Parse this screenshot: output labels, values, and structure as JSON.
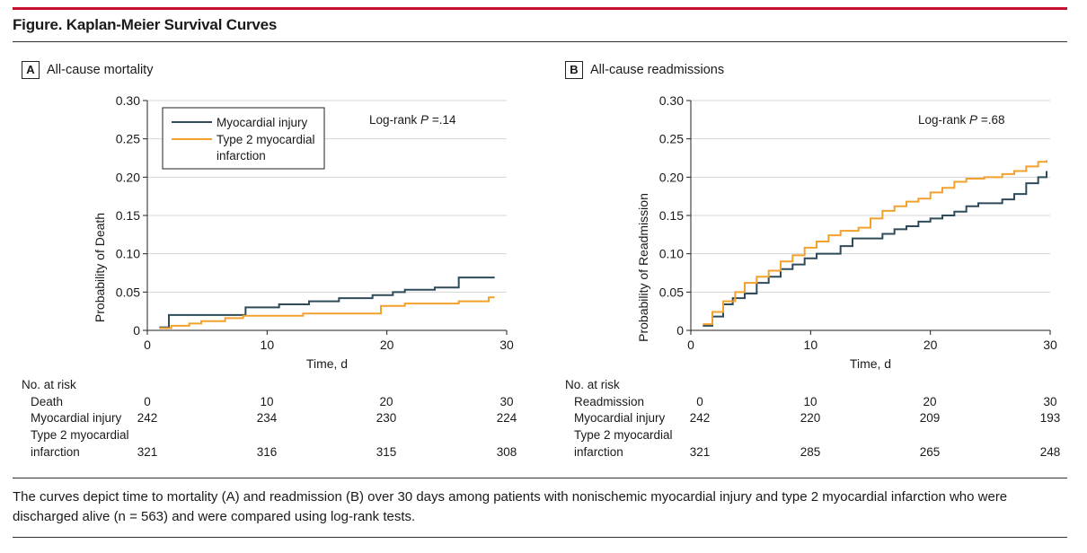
{
  "figure": {
    "title": "Figure. Kaplan-Meier Survival Curves",
    "caption": "The curves depict time to mortality (A) and readmission (B) over 30 days among patients with nonischemic myocardial injury and type 2 myocardial infarction who were discharged alive (n = 563) and were compared using log-rank tests."
  },
  "colors": {
    "myocardial_injury": "#2f4b5a",
    "type2_mi": "#f2a12c",
    "accent_rule": "#c8102e"
  },
  "legend_lines": [
    "Myocardial injury",
    "Type 2 myocardial",
    "infarction"
  ],
  "panels": [
    {
      "letter": "A",
      "title": "All-cause mortality",
      "pvalue_prefix": "Log-rank ",
      "pvalue_p": "P",
      "pvalue_suffix": " =.14",
      "risk_header": "No. at risk",
      "risk_event_label": "Death",
      "risk_times": [
        "0",
        "10",
        "20",
        "30"
      ],
      "risk_row1_label": "Myocardial injury",
      "risk_row1": [
        "242",
        "234",
        "230",
        "224"
      ],
      "risk_row2_label_1": "Type 2 myocardial",
      "risk_row2_label_2": "infarction",
      "risk_row2": [
        "321",
        "316",
        "315",
        "308"
      ]
    },
    {
      "letter": "B",
      "title": "All-cause readmissions",
      "pvalue_prefix": "Log-rank ",
      "pvalue_p": "P",
      "pvalue_suffix": " =.68",
      "risk_header": "No. at risk",
      "risk_event_label": "Readmission",
      "risk_times": [
        "0",
        "10",
        "20",
        "30"
      ],
      "risk_row1_label": "Myocardial injury",
      "risk_row1": [
        "242",
        "220",
        "209",
        "193"
      ],
      "risk_row2_label_1": "Type 2 myocardial",
      "risk_row2_label_2": "infarction",
      "risk_row2": [
        "321",
        "285",
        "265",
        "248"
      ]
    }
  ],
  "chart_data": [
    {
      "type": "line",
      "step": true,
      "title": "All-cause mortality",
      "xlabel": "Time, d",
      "ylabel": "Probability of Death",
      "xlim": [
        0,
        30
      ],
      "ylim": [
        0,
        0.3
      ],
      "xticks": [
        0,
        10,
        20,
        30
      ],
      "yticks": [
        0,
        0.05,
        0.1,
        0.15,
        0.2,
        0.25,
        0.3
      ],
      "ytick_labels": [
        "0",
        "0.05",
        "0.10",
        "0.15",
        "0.20",
        "0.25",
        "0.30"
      ],
      "grid": true,
      "legend_position": "top-left",
      "series": [
        {
          "name": "Myocardial injury",
          "x": [
            1,
            1.8,
            8.2,
            11,
            13.5,
            16,
            18.8,
            20.5,
            21.5,
            24,
            26,
            29
          ],
          "y": [
            0.004,
            0.02,
            0.03,
            0.034,
            0.038,
            0.042,
            0.046,
            0.05,
            0.053,
            0.056,
            0.069,
            0.069
          ]
        },
        {
          "name": "Type 2 myocardial infarction",
          "x": [
            1,
            2,
            3.5,
            4.5,
            6.5,
            8,
            13,
            19.5,
            21.5,
            26,
            28.5,
            29
          ],
          "y": [
            0.003,
            0.006,
            0.009,
            0.012,
            0.016,
            0.019,
            0.022,
            0.032,
            0.035,
            0.038,
            0.043,
            0.043
          ]
        }
      ]
    },
    {
      "type": "line",
      "step": true,
      "title": "All-cause readmissions",
      "xlabel": "Time, d",
      "ylabel": "Probability of Readmission",
      "xlim": [
        0,
        30
      ],
      "ylim": [
        0,
        0.3
      ],
      "xticks": [
        0,
        10,
        20,
        30
      ],
      "yticks": [
        0,
        0.05,
        0.1,
        0.15,
        0.2,
        0.25,
        0.3
      ],
      "ytick_labels": [
        "0",
        "0.05",
        "0.10",
        "0.15",
        "0.20",
        "0.25",
        "0.30"
      ],
      "grid": true,
      "series": [
        {
          "name": "Myocardial injury",
          "x": [
            1,
            1.8,
            2.7,
            3.5,
            4.5,
            5.5,
            6.5,
            7.5,
            8.5,
            9.5,
            10.5,
            12.5,
            13.5,
            16,
            17,
            18,
            19,
            20,
            21,
            22,
            23,
            24,
            26,
            27,
            28,
            29,
            29.7
          ],
          "y": [
            0.006,
            0.018,
            0.034,
            0.042,
            0.048,
            0.062,
            0.07,
            0.08,
            0.086,
            0.094,
            0.1,
            0.11,
            0.12,
            0.126,
            0.132,
            0.136,
            0.142,
            0.146,
            0.15,
            0.155,
            0.162,
            0.166,
            0.171,
            0.178,
            0.192,
            0.2,
            0.208
          ]
        },
        {
          "name": "Type 2 myocardial infarction",
          "x": [
            1,
            1.8,
            2.7,
            3.7,
            4.5,
            5.5,
            6.5,
            7.5,
            8.5,
            9.5,
            10.5,
            11.5,
            12.5,
            14,
            15,
            16,
            17,
            18,
            19,
            20,
            21,
            22,
            23,
            24.5,
            26,
            27,
            28,
            29,
            29.7
          ],
          "y": [
            0.008,
            0.024,
            0.038,
            0.05,
            0.062,
            0.07,
            0.078,
            0.09,
            0.098,
            0.108,
            0.116,
            0.124,
            0.13,
            0.134,
            0.146,
            0.156,
            0.162,
            0.168,
            0.172,
            0.18,
            0.186,
            0.194,
            0.198,
            0.2,
            0.204,
            0.208,
            0.214,
            0.22,
            0.222
          ]
        }
      ]
    }
  ]
}
